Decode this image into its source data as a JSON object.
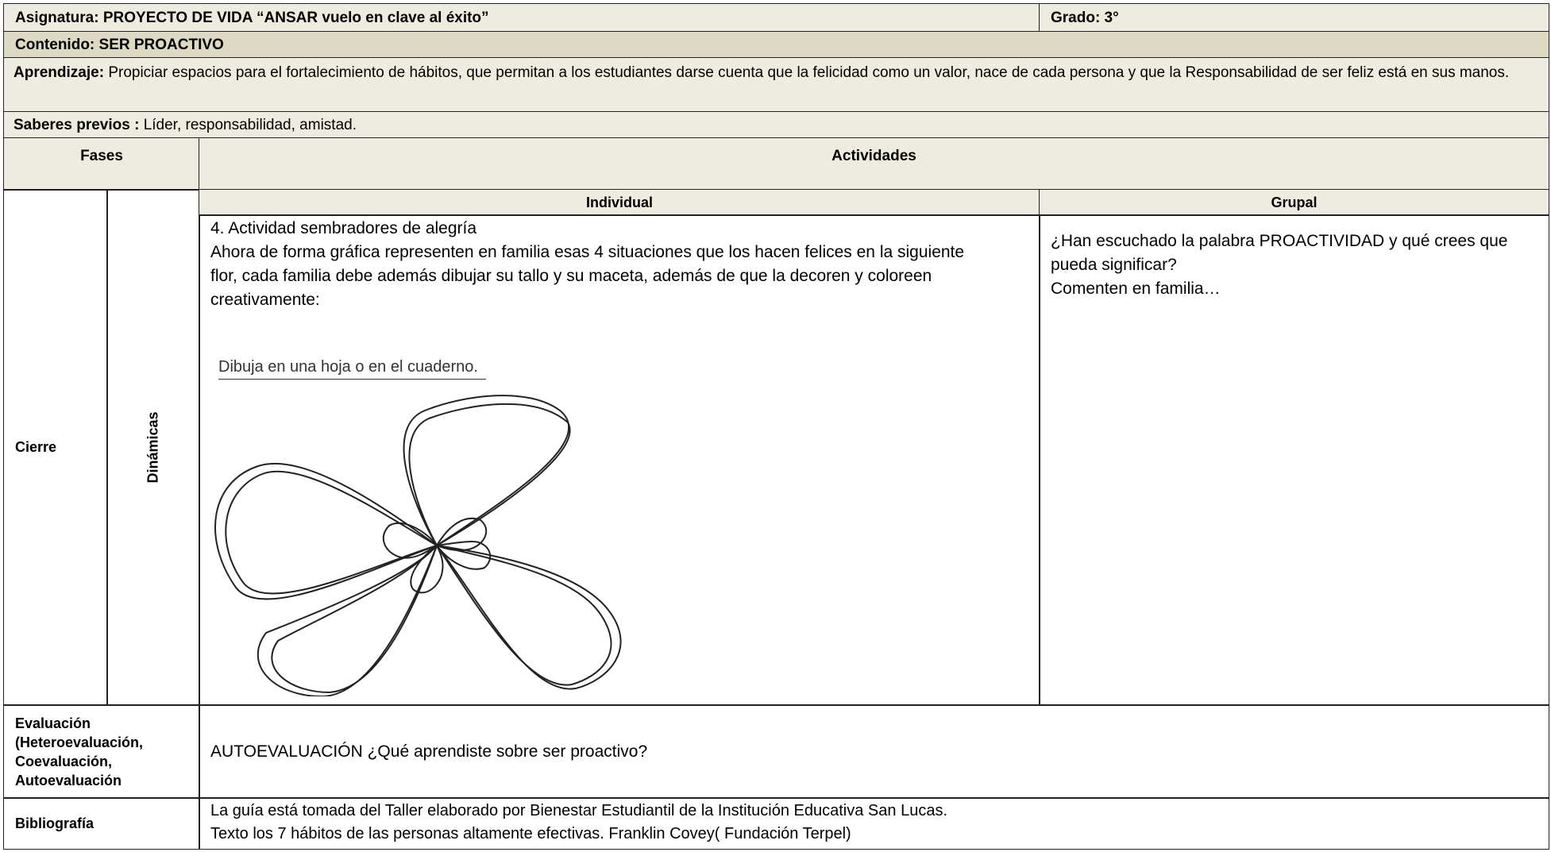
{
  "header": {
    "subject": "Asignatura: PROYECTO DE VIDA “ANSAR vuelo en clave al éxito”",
    "grade": "Grado: 3°"
  },
  "content": "Contenido: SER PROACTIVO",
  "learning": {
    "label": "Aprendizaje:",
    "text": "Propiciar espacios para el fortalecimiento de hábitos, que permitan a los estudiantes darse cuenta que la felicidad como un valor, nace de cada persona  y que la Responsabilidad de ser feliz está en sus manos."
  },
  "prior_knowledge": {
    "label": "Saberes previos :",
    "text": "Líder, responsabilidad, amistad."
  },
  "columns": {
    "phases": "Fases",
    "activities": "Actividades",
    "individual": "Individual",
    "group": "Grupal"
  },
  "phase": {
    "name": "Cierre",
    "type": "Dinámicas",
    "individual": {
      "title": "4. Actividad sembradores de alegría",
      "text": "Ahora de forma gráfica representen en familia esas 4 situaciones que los hacen felices en la siguiente flor, cada familia debe además dibujar su tallo y su maceta, además de que la decoren y coloreen creativamente:",
      "image_caption": "Dibuja en una hoja o en el cuaderno."
    },
    "group": {
      "question": "¿Han escuchado la palabra PROACTIVIDAD y qué crees que pueda significar?",
      "note": "Comenten en familia…"
    }
  },
  "evaluation": {
    "label": "Evaluación (Heteroevaluación, Coevaluación, Autoevaluación",
    "text": "AUTOEVALUACIÓN ¿Qué aprendiste sobre ser proactivo?"
  },
  "bibliography": {
    "label": "Bibliografía",
    "lines": [
      "La guía está tomada del Taller elaborado por Bienestar Estudiantil de la Institución Educativa San Lucas.",
      "Texto los 7 hábitos de las personas altamente efectivas. Franklin Covey( Fundación Terpel)"
    ]
  }
}
